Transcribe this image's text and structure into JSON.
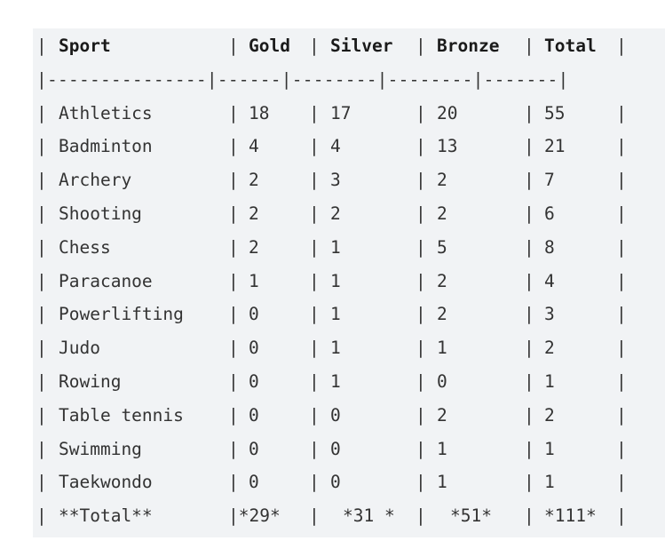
{
  "table": {
    "header": [
      "Sport",
      "Gold",
      "Silver",
      "Bronze",
      "Total"
    ],
    "separator": "|---------------|------|--------|--------|-------|",
    "rows": [
      [
        "Athletics",
        "18",
        "17",
        "20",
        "55"
      ],
      [
        "Badminton",
        "4",
        "4",
        "13",
        "21"
      ],
      [
        "Archery",
        "2",
        "3",
        "2",
        "7"
      ],
      [
        "Shooting",
        "2",
        "2",
        "2",
        "6"
      ],
      [
        "Chess",
        "2",
        "1",
        "5",
        "8"
      ],
      [
        "Paracanoe",
        "1",
        "1",
        "2",
        "4"
      ],
      [
        "Powerlifting",
        "0",
        "1",
        "2",
        "3"
      ],
      [
        "Judo",
        "0",
        "1",
        "1",
        "2"
      ],
      [
        "Rowing",
        "0",
        "1",
        "0",
        "1"
      ],
      [
        "Table tennis",
        "0",
        "0",
        "2",
        "2"
      ],
      [
        "Swimming",
        "0",
        "0",
        "1",
        "1"
      ],
      [
        "Taekwondo",
        "0",
        "0",
        "1",
        "1"
      ]
    ],
    "total_row": {
      "sport": "**Total**",
      "gold": "*29*",
      "silver": "*31 *",
      "bronze": "*51*",
      "total": "*111*"
    }
  }
}
